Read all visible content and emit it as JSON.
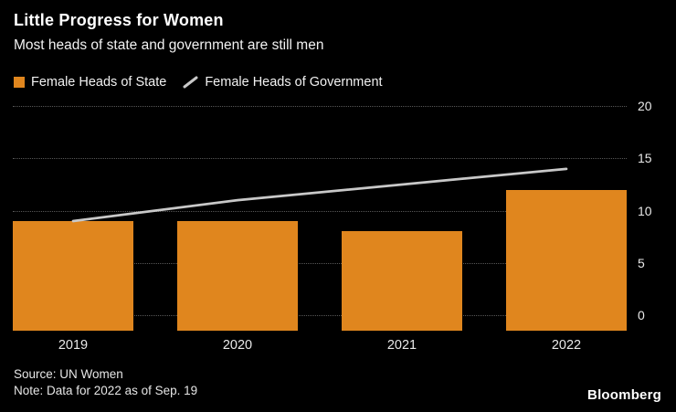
{
  "header": {
    "title": "Little Progress for Women",
    "subtitle": "Most heads of state and government are still men"
  },
  "legend": [
    {
      "label": "Female Heads of State",
      "marker": "bar-swatch",
      "color": "#E0861E"
    },
    {
      "label": "Female Heads of Government",
      "marker": "line-swatch",
      "color": "#C8C8C8"
    }
  ],
  "footer": {
    "source": "Source: UN Women",
    "note": "Note: Data for 2022 as of Sep. 19",
    "brand": "Bloomberg"
  },
  "chart_data": {
    "type": "bar",
    "categories": [
      "2019",
      "2020",
      "2021",
      "2022"
    ],
    "series": [
      {
        "name": "Female Heads of State",
        "type": "bar",
        "color": "#E0861E",
        "values": [
          9,
          9,
          8,
          12
        ]
      },
      {
        "name": "Female Heads of Government",
        "type": "line",
        "color": "#C8C8C8",
        "values": [
          9,
          11,
          12.5,
          14
        ]
      }
    ],
    "title": "Little Progress for Women",
    "subtitle": "Most heads of state and government are still men",
    "xlabel": "",
    "ylabel": "",
    "ylim": [
      0,
      20
    ],
    "yticks": [
      0,
      5,
      10,
      15,
      20
    ],
    "yaxis_side": "right",
    "grid": "dotted-horizontal",
    "legend_position": "top-left",
    "background": "#000000"
  }
}
